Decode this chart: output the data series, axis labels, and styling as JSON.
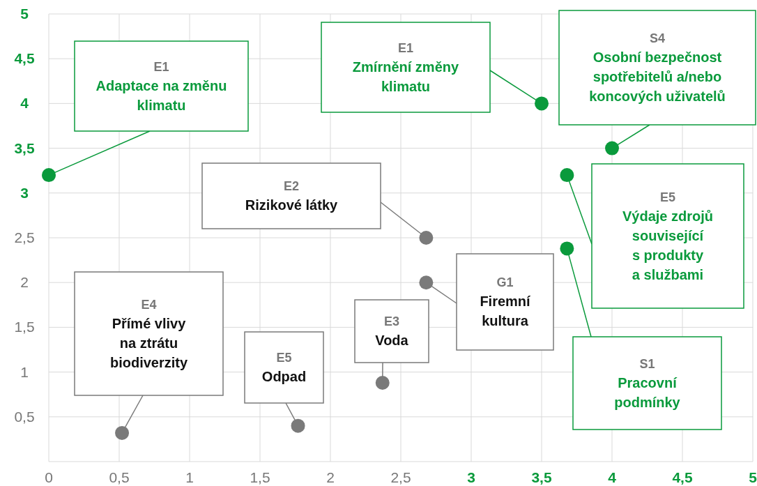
{
  "chart_data": {
    "type": "scatter",
    "xlim": [
      0,
      5
    ],
    "ylim": [
      0,
      5
    ],
    "xticks": [
      0,
      {
        "value": 0.5,
        "label": "0,5"
      },
      1,
      {
        "value": 1.5,
        "label": "1,5"
      },
      2,
      {
        "value": 2.5,
        "label": "2,5"
      },
      3,
      {
        "value": 3.5,
        "label": "3,5"
      },
      4,
      {
        "value": 4.5,
        "label": "4,5"
      },
      5
    ],
    "yticks": [
      {
        "value": 0.5,
        "label": "0,5"
      },
      1,
      {
        "value": 1.5,
        "label": "1,5"
      },
      2,
      {
        "value": 2.5,
        "label": "2,5"
      },
      3,
      {
        "value": 3.5,
        "label": "3,5"
      },
      4,
      {
        "value": 4.5,
        "label": "4,5"
      },
      5
    ],
    "grid": true,
    "marker": "circle",
    "series": [
      {
        "color": "#0a9a3c",
        "x": [
          0,
          3.5,
          4.0,
          3.68,
          3.68
        ],
        "values": [
          3.2,
          4.0,
          3.5,
          3.2,
          2.38
        ]
      },
      {
        "color": "#7a7a7a",
        "x": [
          2.68,
          2.68,
          2.37,
          1.77,
          0.52
        ],
        "values": [
          2.5,
          2.0,
          0.88,
          0.4,
          0.32
        ]
      }
    ],
    "annotations": [
      "E1\nAdaptace na změnu\nklimatu",
      "E1\nZmírnění změny\nklimatu",
      "S4\nOsobní bezpečnost\nspotřebitelů a/nebo\nkoncových uživatelů",
      "E5\nVýdaje zdrojů\nsouvisející\ns produkty\na službami",
      "S1\nPracovní\npodmínky",
      "E2\nRizikové látky",
      "G1\nFiremní\nkultura",
      "E3\nVoda",
      "E5\nOdpad",
      "E4\nPřímé vlivy\nna ztrátu\nbiodiverzity"
    ]
  }
}
